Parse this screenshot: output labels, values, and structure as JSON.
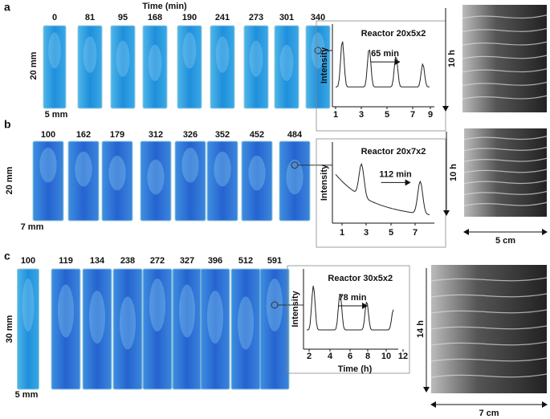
{
  "panels": [
    {
      "label": "a",
      "time_header": "Time (min)",
      "times": [
        "0",
        "81",
        "95",
        "168",
        "190",
        "241",
        "273",
        "301",
        "340"
      ],
      "height_label": "20 mm",
      "width_label": "5 mm",
      "inset": {
        "title": "Reactor 20x5x2",
        "ylabel": "Intensity",
        "period": "65 min",
        "xticks": [
          "1",
          "3",
          "5",
          "7",
          "9"
        ]
      },
      "kymo": {
        "time_label": "10 h"
      }
    },
    {
      "label": "b",
      "times": [
        "100",
        "162",
        "179",
        "312",
        "326",
        "352",
        "452",
        "484"
      ],
      "height_label": "20 mm",
      "width_label": "7 mm",
      "inset": {
        "title": "Reactor 20x7x2",
        "ylabel": "Intensity",
        "period": "112 min",
        "xticks": [
          "1",
          "3",
          "5",
          "7"
        ]
      },
      "kymo": {
        "time_label": "10 h",
        "width_label": "5 cm"
      }
    },
    {
      "label": "c",
      "times": [
        "100",
        "119",
        "134",
        "238",
        "272",
        "327",
        "396",
        "512",
        "591"
      ],
      "height_label": "30 mm",
      "width_label": "5 mm",
      "inset": {
        "title": "Reactor 30x5x2",
        "ylabel": "Intensity",
        "period": "78 min",
        "xticks": [
          "2",
          "4",
          "6",
          "8",
          "10",
          "12"
        ],
        "xlabel": "Time (h)"
      },
      "kymo": {
        "time_label": "14 h",
        "width_label": "7 cm"
      }
    }
  ]
}
